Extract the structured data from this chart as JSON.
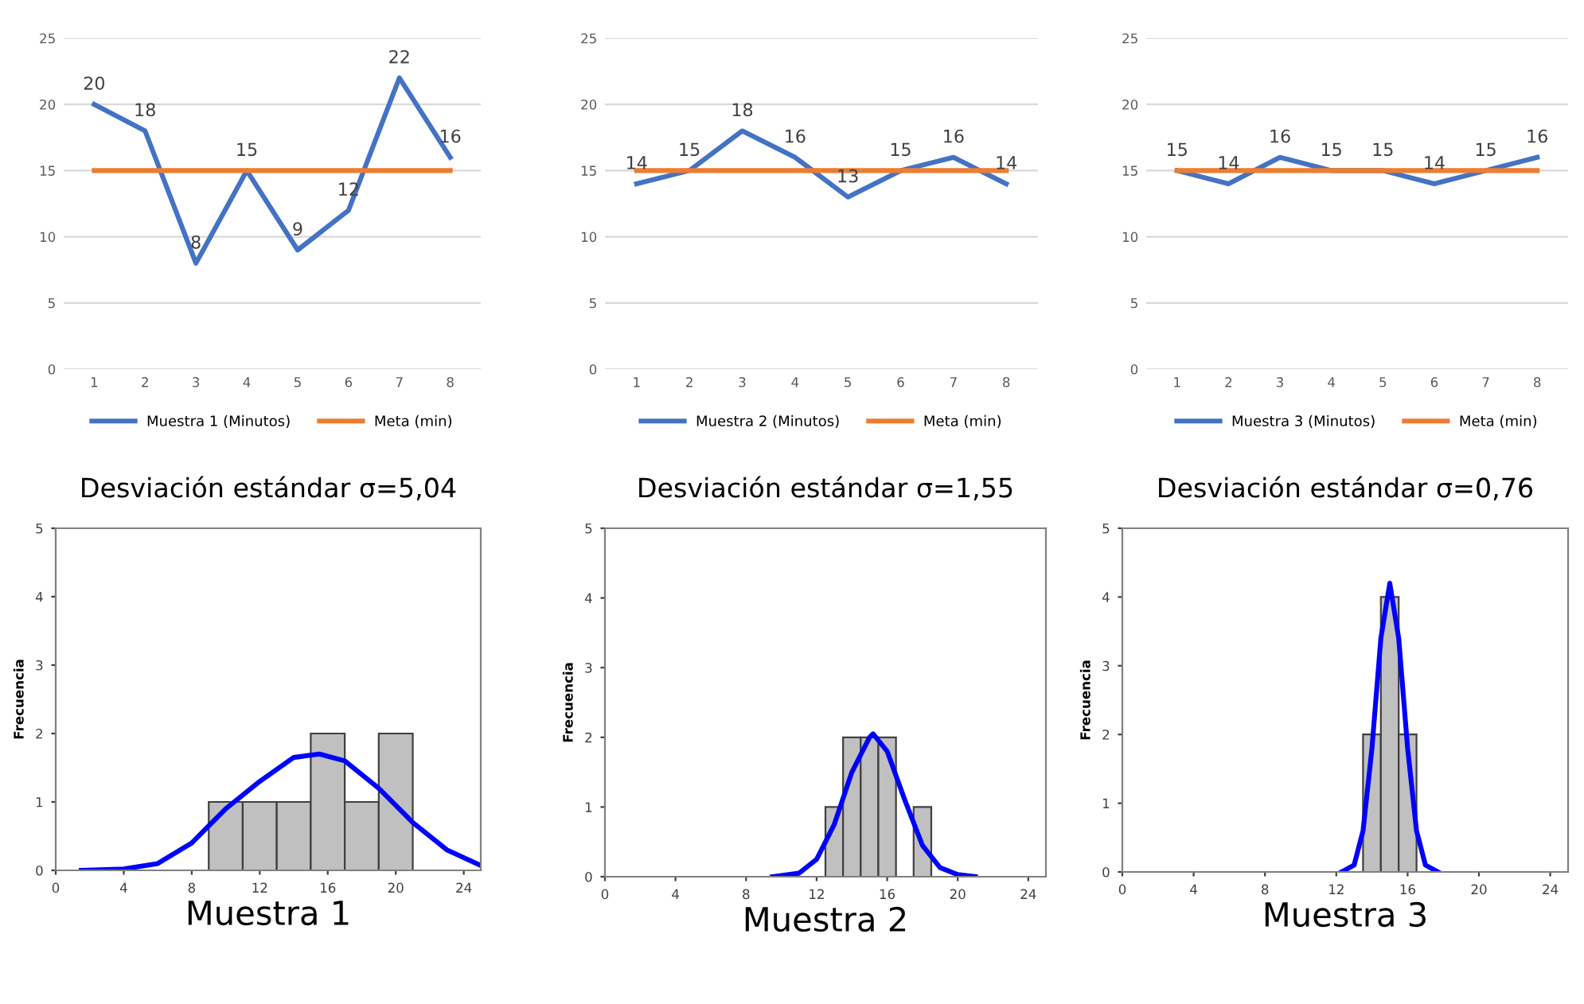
{
  "chart_data": [
    {
      "type": "line",
      "categories": [
        "1",
        "2",
        "3",
        "4",
        "5",
        "6",
        "7",
        "8"
      ],
      "series": [
        {
          "name": "Muestra 1 (Minutos)",
          "color": "#4472c4",
          "values": [
            20,
            18,
            8,
            15,
            9,
            12,
            22,
            16
          ],
          "value_labels": [
            "20",
            "18",
            "8",
            "15",
            "9",
            "12",
            "22",
            "16"
          ]
        },
        {
          "name": "Meta (min)",
          "color": "#ed7d31",
          "values": [
            15,
            15,
            15,
            15,
            15,
            15,
            15,
            15
          ]
        }
      ],
      "ylim": [
        0,
        25
      ],
      "yticks": [
        0,
        5,
        10,
        15,
        20,
        25
      ],
      "grid": "y",
      "legend": "bottom"
    },
    {
      "type": "line",
      "categories": [
        "1",
        "2",
        "3",
        "4",
        "5",
        "6",
        "7",
        "8"
      ],
      "series": [
        {
          "name": "Muestra 2 (Minutos)",
          "color": "#4472c4",
          "values": [
            14,
            15,
            18,
            16,
            13,
            15,
            16,
            14
          ],
          "value_labels": [
            "14",
            "15",
            "18",
            "16",
            "13",
            "15",
            "16",
            "14"
          ]
        },
        {
          "name": "Meta (min)",
          "color": "#ed7d31",
          "values": [
            15,
            15,
            15,
            15,
            15,
            15,
            15,
            15
          ]
        }
      ],
      "ylim": [
        0,
        25
      ],
      "yticks": [
        0,
        5,
        10,
        15,
        20,
        25
      ],
      "grid": "y",
      "legend": "bottom"
    },
    {
      "type": "line",
      "categories": [
        "1",
        "2",
        "3",
        "4",
        "5",
        "6",
        "7",
        "8"
      ],
      "series": [
        {
          "name": "Muestra 3 (Minutos)",
          "color": "#4472c4",
          "values": [
            15,
            14,
            16,
            15,
            15,
            14,
            15,
            16
          ],
          "value_labels": [
            "15",
            "14",
            "16",
            "15",
            "15",
            "14",
            "15",
            "16"
          ]
        },
        {
          "name": "Meta (min)",
          "color": "#ed7d31",
          "values": [
            15,
            15,
            15,
            15,
            15,
            15,
            15,
            15
          ]
        }
      ],
      "ylim": [
        0,
        25
      ],
      "yticks": [
        0,
        5,
        10,
        15,
        20,
        25
      ],
      "grid": "y",
      "legend": "bottom"
    },
    {
      "type": "histogram",
      "title": "Desviación estándar σ=5,04",
      "xlabel": "Muestra 1",
      "ylabel": "Frecuencia",
      "bins": [
        9,
        11,
        13,
        15,
        17,
        19,
        21
      ],
      "values": [
        1,
        1,
        1,
        2,
        1,
        2
      ],
      "color": "#c0c0c0",
      "series": [
        {
          "type": "line",
          "color": "#0000ff",
          "x": [
            1.5,
            4,
            6,
            8,
            10,
            12,
            14,
            15.5,
            17,
            19,
            21,
            23,
            25
          ],
          "values": [
            0,
            0.02,
            0.1,
            0.4,
            0.9,
            1.3,
            1.65,
            1.7,
            1.6,
            1.2,
            0.7,
            0.3,
            0.07
          ]
        }
      ],
      "xlim": [
        0,
        25
      ],
      "xticks": [
        0,
        4,
        8,
        12,
        16,
        20,
        24
      ],
      "ylim": [
        0,
        5
      ],
      "yticks": [
        0,
        1,
        2,
        3,
        4,
        5
      ]
    },
    {
      "type": "histogram",
      "title": "Desviación estándar σ=1,55",
      "xlabel": "Muestra 2",
      "ylabel": "Frecuencia",
      "bins": [
        12.5,
        13.5,
        14.5,
        15.5,
        16.5,
        17.5,
        18.5
      ],
      "values": [
        1,
        2,
        2,
        2,
        0,
        1
      ],
      "color": "#c0c0c0",
      "series": [
        {
          "type": "line",
          "color": "#0000ff",
          "x": [
            9.5,
            11,
            12,
            13,
            14,
            15,
            15.2,
            16,
            17,
            18,
            19,
            20,
            21
          ],
          "values": [
            0,
            0.05,
            0.25,
            0.75,
            1.5,
            2.0,
            2.05,
            1.8,
            1.1,
            0.45,
            0.13,
            0.03,
            0
          ]
        }
      ],
      "xlim": [
        0,
        25
      ],
      "xticks": [
        0,
        4,
        8,
        12,
        16,
        20,
        24
      ],
      "ylim": [
        0,
        5
      ],
      "yticks": [
        0,
        1,
        2,
        3,
        4,
        5
      ]
    },
    {
      "type": "histogram",
      "title": "Desviación estándar σ=0,76",
      "xlabel": "Muestra 3",
      "ylabel": "Frecuencia",
      "bins": [
        13.5,
        14.5,
        15.5,
        16.5
      ],
      "values": [
        2,
        4,
        2
      ],
      "color": "#c0c0c0",
      "series": [
        {
          "type": "line",
          "color": "#0000ff",
          "x": [
            12.3,
            13,
            13.5,
            14,
            14.5,
            15,
            15.5,
            16,
            16.5,
            17,
            17.7
          ],
          "values": [
            0,
            0.1,
            0.6,
            1.8,
            3.4,
            4.2,
            3.4,
            1.8,
            0.6,
            0.1,
            0
          ]
        }
      ],
      "xlim": [
        0,
        25
      ],
      "xticks": [
        0,
        4,
        8,
        12,
        16,
        20,
        24
      ],
      "ylim": [
        0,
        5
      ],
      "yticks": [
        0,
        1,
        2,
        3,
        4,
        5
      ]
    }
  ]
}
